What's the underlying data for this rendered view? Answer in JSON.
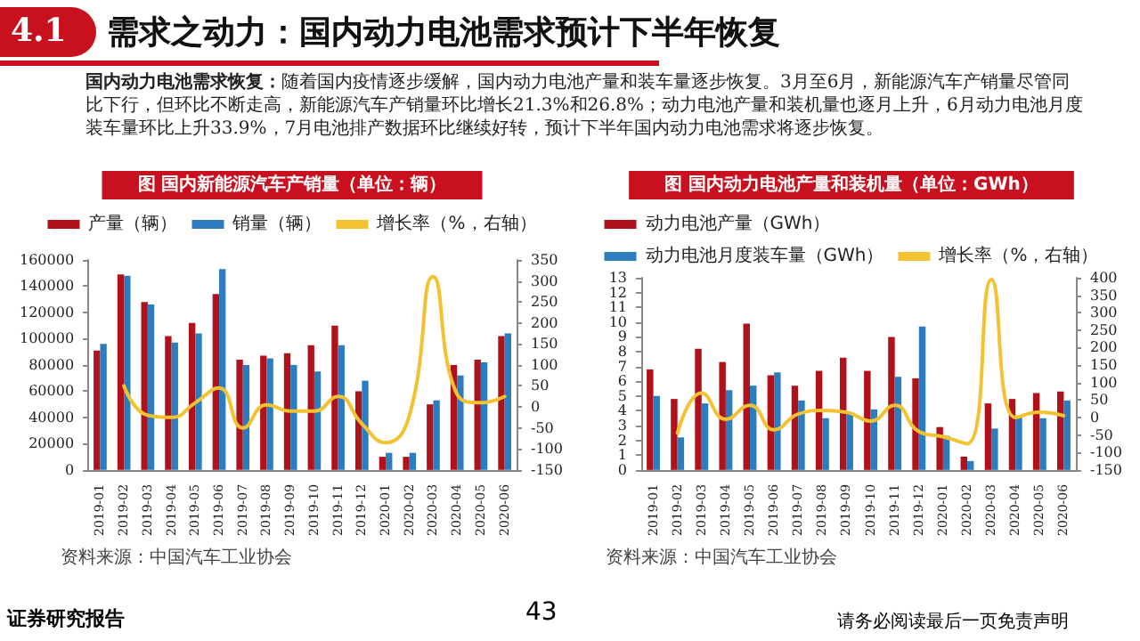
{
  "chart_data": [
    {
      "type": "bar",
      "title": "图 国内新能源汽车产销量（单位：辆）",
      "categories": [
        "2019-01",
        "2019-02",
        "2019-03",
        "2019-04",
        "2019-05",
        "2019-06",
        "2019-07",
        "2019-08",
        "2019-09",
        "2019-10",
        "2019-11",
        "2019-12",
        "2020-01",
        "2020-02",
        "2020-03",
        "2020-04",
        "2020-05",
        "2020-06"
      ],
      "series": [
        {
          "name": "产量（辆）",
          "color": "#b0121b",
          "values": [
            91000,
            149000,
            128000,
            102000,
            112000,
            134000,
            84000,
            87000,
            89000,
            95000,
            110000,
            60000,
            10000,
            10000,
            50000,
            80000,
            84000,
            102000
          ]
        },
        {
          "name": "销量（辆）",
          "color": "#2e7cc0",
          "values": [
            96000,
            148000,
            126000,
            97000,
            104000,
            153000,
            80000,
            85000,
            80000,
            75000,
            95000,
            68000,
            13000,
            13000,
            53000,
            72000,
            82000,
            104000
          ]
        },
        {
          "name": "增长率（%，右轴）",
          "type": "line",
          "axis": "y2",
          "color": "#f2c232",
          "values": [
            null,
            50,
            -20,
            -25,
            10,
            45,
            -50,
            5,
            -10,
            -10,
            25,
            -40,
            -85,
            -20,
            310,
            30,
            10,
            25
          ]
        }
      ],
      "ylim": [
        0,
        160000
      ],
      "yticks": [
        0,
        20000,
        40000,
        60000,
        80000,
        100000,
        120000,
        140000,
        160000
      ],
      "y2lim": [
        -150,
        350
      ],
      "y2ticks": [
        -150,
        -100,
        -50,
        0,
        50,
        100,
        150,
        200,
        250,
        300,
        350
      ],
      "legend": "top",
      "marker": "none",
      "annotations": [
        "4.1",
        "需求之动力：国内动力电池需求预计下半年恢复",
        "国内动力电池需求恢复：",
        "随着国内疫情逐步缓解，国内动力电池产量和装车量逐步恢复。3月至6月，新能源汽车产销量尽管同比下行，但环比不断走高，新能源汽车产销量环比增长21.3%和26.8%；动力电池产量和装机量也逐月上升，6月动力电池月度装车量环比上升33.9%，7月电池排产数据环比继续好转，预计下半年国内动力电池需求将逐步恢复。",
        "资料来源：中国汽车工业协会"
      ]
    },
    {
      "type": "bar",
      "title": "图 国内动力电池产量和装机量（单位：GWh）",
      "categories": [
        "2019-01",
        "2019-02",
        "2019-03",
        "2019-04",
        "2019-05",
        "2019-06",
        "2019-07",
        "2019-08",
        "2019-09",
        "2019-10",
        "2019-11",
        "2019-12",
        "2020-01",
        "2020-02",
        "2020-03",
        "2020-04",
        "2020-05",
        "2020-06"
      ],
      "series": [
        {
          "name": "动力电池产量（GWh）",
          "color": "#b0121b",
          "values": [
            6.8,
            4.8,
            8.2,
            7.3,
            9.9,
            6.4,
            5.7,
            6.7,
            7.6,
            6.7,
            9.0,
            6.2,
            2.9,
            0.9,
            4.5,
            4.8,
            5.2,
            5.3
          ]
        },
        {
          "name": "动力电池月度装车量（GWh）",
          "color": "#2e7cc0",
          "values": [
            5.0,
            2.2,
            4.5,
            5.4,
            5.7,
            6.6,
            4.7,
            3.5,
            3.9,
            4.1,
            6.3,
            9.7,
            2.3,
            0.6,
            2.8,
            3.6,
            3.5,
            4.7
          ]
        },
        {
          "name": "增长率（%，右轴）",
          "type": "line",
          "axis": "y2",
          "color": "#f2c232",
          "values": [
            null,
            -45,
            70,
            -5,
            35,
            -35,
            10,
            20,
            15,
            -10,
            35,
            -40,
            -55,
            -75,
            395,
            0,
            15,
            5
          ]
        }
      ],
      "ylim": [
        0,
        13
      ],
      "yticks": [
        0,
        1,
        2,
        3,
        4,
        5,
        6,
        7,
        8,
        9,
        10,
        11,
        12,
        13
      ],
      "y2lim": [
        -150,
        400
      ],
      "y2ticks": [
        -150,
        -100,
        -50,
        0,
        50,
        100,
        150,
        200,
        250,
        300,
        350,
        400
      ],
      "legend": "top",
      "marker": "none",
      "annotations": [
        "资料来源：中国汽车工业协会",
        "证券研究报告",
        "43",
        "请务必阅读最后一页免责声明"
      ]
    }
  ]
}
